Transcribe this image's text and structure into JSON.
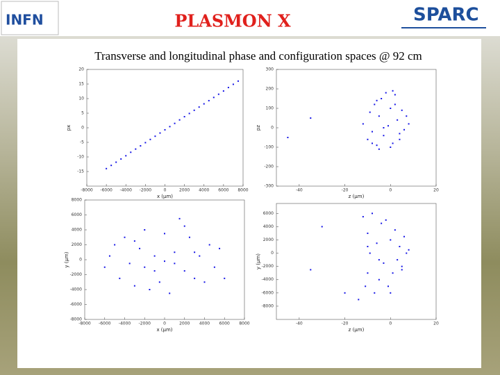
{
  "header": {
    "logo_left": "INFN",
    "title": "PLASMON X",
    "logo_right": "SPARC"
  },
  "subtitle": "Transverse and longitudinal phase and configuration spaces @ 92 cm",
  "chart_data": [
    {
      "type": "scatter",
      "xlabel": "x (μm)",
      "ylabel": "px",
      "color": "#1414e6",
      "xlim": [
        -8000,
        8000
      ],
      "ylim": [
        -20,
        20
      ],
      "xticks": [
        -8000,
        -6000,
        -4000,
        -2000,
        0,
        2000,
        4000,
        6000,
        8000
      ],
      "yticks": [
        -15,
        -10,
        -5,
        0,
        5,
        10,
        15,
        20
      ],
      "x": [
        -6000,
        -5500,
        -5000,
        -4500,
        -4000,
        -3500,
        -3000,
        -2500,
        -2000,
        -1500,
        -1000,
        -500,
        0,
        500,
        1000,
        1500,
        2000,
        2500,
        3000,
        3500,
        4000,
        4500,
        5000,
        5500,
        6000,
        6500,
        7000,
        7500
      ],
      "values": [
        -14,
        -12.9,
        -11.8,
        -10.7,
        -9.6,
        -8.4,
        -7.3,
        -6.2,
        -5.1,
        -4,
        -2.9,
        -1.8,
        -0.7,
        0.4,
        1.5,
        2.7,
        3.8,
        4.9,
        6,
        7.1,
        8.2,
        9.3,
        10.4,
        11.5,
        12.6,
        13.8,
        14.9,
        16
      ]
    },
    {
      "type": "scatter",
      "xlabel": "z (μm)",
      "ylabel": "pz",
      "color": "#1414e6",
      "xlim": [
        -50,
        20
      ],
      "ylim": [
        -300,
        300
      ],
      "xticks": [
        -40,
        -20,
        0,
        20
      ],
      "yticks": [
        -300,
        -200,
        -100,
        0,
        100,
        200,
        300
      ],
      "x": [
        -45,
        -35,
        -12,
        -10,
        -9,
        -8,
        -7,
        -6,
        -5,
        -4,
        -3,
        -2,
        -1,
        0,
        1,
        2,
        3,
        4,
        5,
        6,
        7,
        8,
        -8,
        -6,
        -3,
        0,
        2,
        4,
        -5,
        1
      ],
      "values": [
        -50,
        50,
        20,
        -60,
        80,
        -20,
        120,
        -90,
        60,
        150,
        -40,
        180,
        10,
        100,
        -80,
        170,
        40,
        -30,
        90,
        -10,
        60,
        20,
        -80,
        140,
        0,
        -100,
        120,
        -60,
        -110,
        190
      ]
    },
    {
      "type": "scatter",
      "xlabel": "x (μm)",
      "ylabel": "y (μm)",
      "color": "#1414e6",
      "xlim": [
        -8000,
        8000
      ],
      "ylim": [
        -8000,
        8000
      ],
      "xticks": [
        -8000,
        -6000,
        -4000,
        -2000,
        0,
        2000,
        4000,
        6000,
        8000
      ],
      "yticks": [
        -8000,
        -6000,
        -4000,
        -2000,
        0,
        2000,
        4000,
        6000,
        8000
      ],
      "x": [
        -6000,
        -5000,
        -4500,
        -4000,
        -3500,
        -3000,
        -2500,
        -2000,
        -1500,
        -1000,
        -500,
        0,
        500,
        1000,
        1500,
        2000,
        2500,
        3000,
        3500,
        4000,
        4500,
        5000,
        6000,
        -3000,
        -1000,
        1000,
        3000,
        0,
        -2000,
        2000,
        5500,
        -5500
      ],
      "values": [
        -1000,
        2000,
        -2500,
        3000,
        -500,
        -3500,
        1500,
        4000,
        -4000,
        500,
        -3000,
        3500,
        -4500,
        1000,
        5500,
        -1500,
        3000,
        -2500,
        500,
        -3000,
        2000,
        -1000,
        -2500,
        2500,
        -1500,
        -500,
        1000,
        -200,
        -1000,
        4500,
        1500,
        500
      ]
    },
    {
      "type": "scatter",
      "xlabel": "z (μm)",
      "ylabel": "y (μm)",
      "color": "#1414e6",
      "xlim": [
        -50,
        20
      ],
      "ylim": [
        -10000,
        7500
      ],
      "xticks": [
        -40,
        -20,
        0,
        20
      ],
      "yticks": [
        -8000,
        -6000,
        -4000,
        -2000,
        0,
        2000,
        4000,
        6000
      ],
      "x": [
        -30,
        -35,
        -20,
        -14,
        -12,
        -11,
        -10,
        -10,
        -9,
        -8,
        -7,
        -6,
        -5,
        -4,
        -3,
        -2,
        -1,
        0,
        1,
        2,
        3,
        4,
        5,
        6,
        7,
        8,
        -10,
        -5,
        0,
        5
      ],
      "values": [
        4000,
        -2500,
        -6000,
        -7000,
        5500,
        -5000,
        3000,
        -3000,
        0,
        6000,
        -6000,
        1500,
        -4000,
        4500,
        -1500,
        5000,
        -5000,
        2000,
        -3000,
        3500,
        -1000,
        1000,
        -2500,
        2500,
        0,
        500,
        1000,
        -1000,
        -6000,
        -2000
      ]
    }
  ]
}
